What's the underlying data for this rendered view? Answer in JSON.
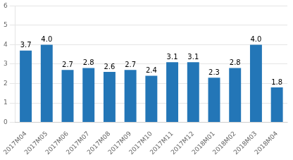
{
  "chart_data": {
    "type": "bar",
    "categories": [
      "2017M04",
      "2017M05",
      "2017M06",
      "2017M07",
      "2017M08",
      "2017M09",
      "2017M10",
      "2017M11",
      "2017M12",
      "2018M01",
      "2018M02",
      "2018M03",
      "2018M04"
    ],
    "values": [
      3.7,
      4.0,
      2.7,
      2.8,
      2.6,
      2.7,
      2.4,
      3.1,
      3.1,
      2.3,
      2.8,
      4.0,
      1.8
    ],
    "value_labels": [
      "3.7",
      "4.0",
      "2.7",
      "2.8",
      "2.6",
      "2.7",
      "2.4",
      "3.1",
      "3.1",
      "2.3",
      "2.8",
      "4.0",
      "1.8"
    ],
    "color": "#2376b7",
    "ylim": [
      0,
      6
    ],
    "yticks": [
      0,
      1,
      2,
      3,
      4,
      5,
      6
    ],
    "grid": true,
    "data_labels": true
  }
}
